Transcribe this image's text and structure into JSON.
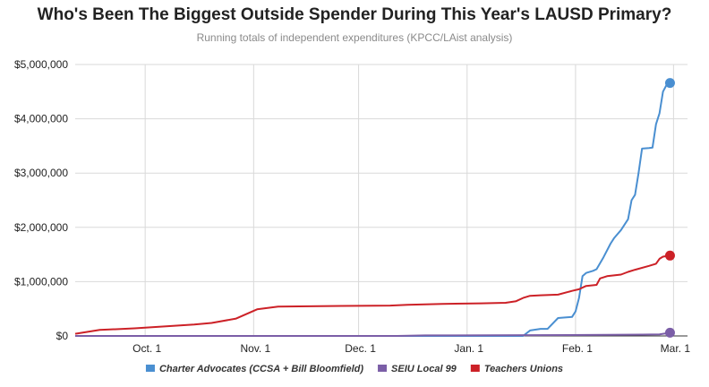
{
  "chart_data": {
    "type": "line",
    "title": "Who's Been The Biggest Outside Spender During This Year's LAUSD Primary?",
    "subtitle": "Running totals of independent expenditures (KPCC/LAist analysis)",
    "x_ticks": [
      {
        "label": "Oct. 1",
        "date": "2016-10-01"
      },
      {
        "label": "Nov. 1",
        "date": "2016-11-01"
      },
      {
        "label": "Dec. 1",
        "date": "2016-12-01"
      },
      {
        "label": "Jan. 1",
        "date": "2017-01-01"
      },
      {
        "label": "Feb. 1",
        "date": "2017-02-01"
      },
      {
        "label": "Mar. 1",
        "date": "2017-03-01"
      }
    ],
    "xlim": [
      "2016-09-11",
      "2017-03-05"
    ],
    "ylim": [
      0,
      5000000
    ],
    "y_ticks": [
      {
        "value": 0,
        "label": "$0"
      },
      {
        "value": 1000000,
        "label": "$1,000,000"
      },
      {
        "value": 2000000,
        "label": "$2,000,000"
      },
      {
        "value": 3000000,
        "label": "$3,000,000"
      },
      {
        "value": 4000000,
        "label": "$4,000,000"
      },
      {
        "value": 5000000,
        "label": "$5,000,000"
      }
    ],
    "grid": true,
    "legend_position": "bottom",
    "series": [
      {
        "name": "Charter Advocates (CCSA + Bill Bloomfield)",
        "color": "#4a8fd1",
        "points": [
          [
            "2016-09-11",
            0
          ],
          [
            "2017-01-17",
            0
          ],
          [
            "2017-01-19",
            100000
          ],
          [
            "2017-01-22",
            130000
          ],
          [
            "2017-01-24",
            130000
          ],
          [
            "2017-01-27",
            330000
          ],
          [
            "2017-01-29",
            340000
          ],
          [
            "2017-01-31",
            350000
          ],
          [
            "2017-02-01",
            450000
          ],
          [
            "2017-02-02",
            700000
          ],
          [
            "2017-02-03",
            1100000
          ],
          [
            "2017-02-04",
            1160000
          ],
          [
            "2017-02-06",
            1200000
          ],
          [
            "2017-02-07",
            1230000
          ],
          [
            "2017-02-09",
            1450000
          ],
          [
            "2017-02-11",
            1700000
          ],
          [
            "2017-02-12",
            1800000
          ],
          [
            "2017-02-14",
            1950000
          ],
          [
            "2017-02-16",
            2150000
          ],
          [
            "2017-02-17",
            2500000
          ],
          [
            "2017-02-18",
            2600000
          ],
          [
            "2017-02-19",
            3000000
          ],
          [
            "2017-02-20",
            3450000
          ],
          [
            "2017-02-22",
            3460000
          ],
          [
            "2017-02-23",
            3470000
          ],
          [
            "2017-02-24",
            3900000
          ],
          [
            "2017-02-25",
            4100000
          ],
          [
            "2017-02-26",
            4500000
          ],
          [
            "2017-02-27",
            4620000
          ],
          [
            "2017-02-28",
            4660000
          ]
        ]
      },
      {
        "name": "SEIU Local 99",
        "color": "#7b5ea7",
        "points": [
          [
            "2016-09-11",
            0
          ],
          [
            "2016-12-12",
            0
          ],
          [
            "2016-12-20",
            10000
          ],
          [
            "2017-01-20",
            15000
          ],
          [
            "2017-02-10",
            20000
          ],
          [
            "2017-02-20",
            25000
          ],
          [
            "2017-02-25",
            30000
          ],
          [
            "2017-02-28",
            60000
          ]
        ]
      },
      {
        "name": "Teachers Unions",
        "color": "#cc2127",
        "points": [
          [
            "2016-09-11",
            40000
          ],
          [
            "2016-09-18",
            110000
          ],
          [
            "2016-09-28",
            140000
          ],
          [
            "2016-10-05",
            170000
          ],
          [
            "2016-10-15",
            210000
          ],
          [
            "2016-10-20",
            240000
          ],
          [
            "2016-10-27",
            320000
          ],
          [
            "2016-11-02",
            490000
          ],
          [
            "2016-11-08",
            540000
          ],
          [
            "2016-11-20",
            550000
          ],
          [
            "2016-12-01",
            555000
          ],
          [
            "2016-12-10",
            560000
          ],
          [
            "2016-12-15",
            575000
          ],
          [
            "2016-12-25",
            590000
          ],
          [
            "2017-01-05",
            600000
          ],
          [
            "2017-01-12",
            610000
          ],
          [
            "2017-01-15",
            640000
          ],
          [
            "2017-01-17",
            700000
          ],
          [
            "2017-01-19",
            740000
          ],
          [
            "2017-01-22",
            750000
          ],
          [
            "2017-01-27",
            760000
          ],
          [
            "2017-01-31",
            830000
          ],
          [
            "2017-02-02",
            860000
          ],
          [
            "2017-02-04",
            920000
          ],
          [
            "2017-02-07",
            940000
          ],
          [
            "2017-02-08",
            1060000
          ],
          [
            "2017-02-10",
            1100000
          ],
          [
            "2017-02-14",
            1130000
          ],
          [
            "2017-02-16",
            1180000
          ],
          [
            "2017-02-18",
            1220000
          ],
          [
            "2017-02-22",
            1290000
          ],
          [
            "2017-02-24",
            1330000
          ],
          [
            "2017-02-25",
            1420000
          ],
          [
            "2017-02-26",
            1460000
          ],
          [
            "2017-02-27",
            1470000
          ],
          [
            "2017-02-28",
            1480000
          ]
        ]
      }
    ]
  }
}
